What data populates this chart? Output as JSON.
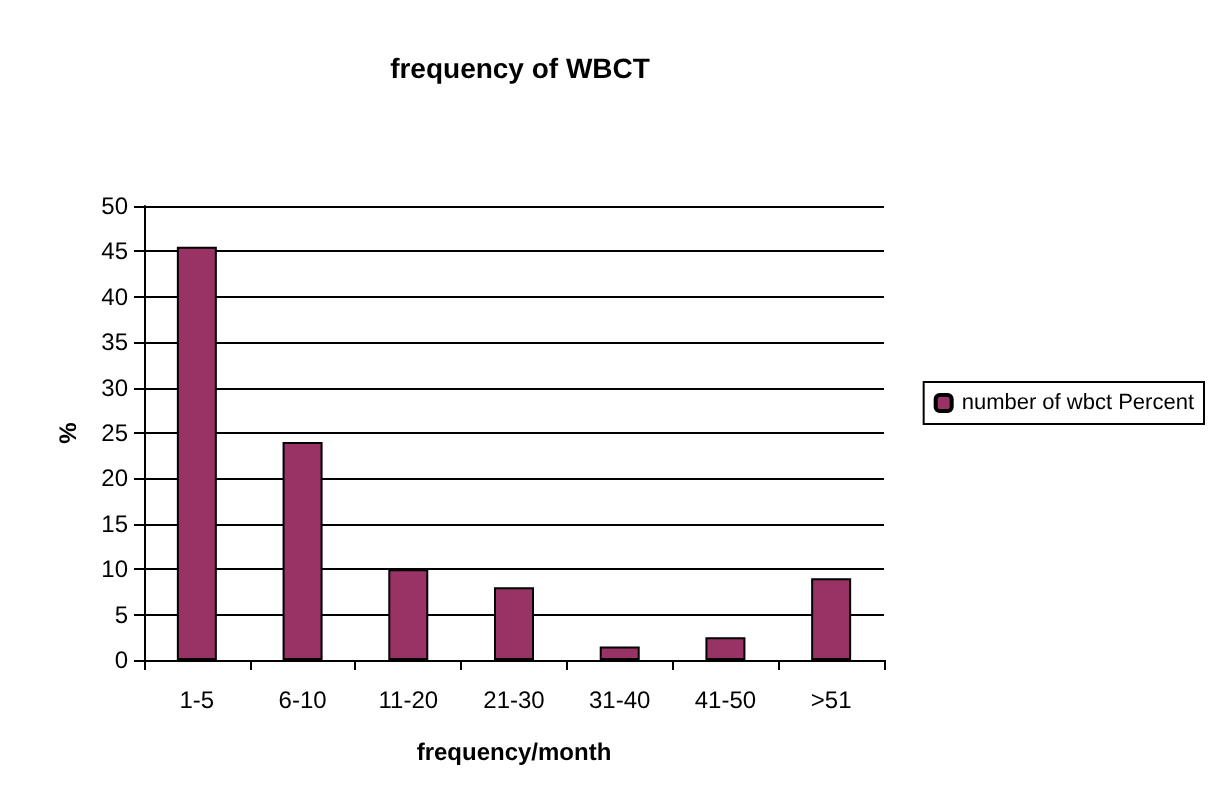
{
  "chart_data": {
    "type": "bar",
    "title": "frequency of WBCT",
    "xlabel": "frequency/month",
    "ylabel": "%",
    "categories": [
      "1-5",
      "6-10",
      "11-20",
      "21-30",
      "31-40",
      "41-50",
      ">51"
    ],
    "series": [
      {
        "name": "number of wbct Percent",
        "color": "#993366",
        "values": [
          45.5,
          24,
          10,
          8,
          1.5,
          2.5,
          9
        ]
      }
    ],
    "ylim": [
      0,
      50
    ],
    "yticks": [
      0,
      5,
      10,
      15,
      20,
      25,
      30,
      35,
      40,
      45,
      50
    ],
    "grid": "y",
    "legend": "right"
  }
}
